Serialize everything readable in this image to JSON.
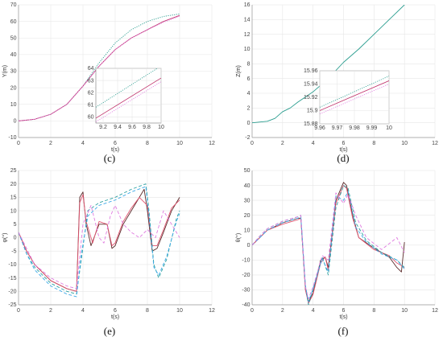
{
  "chart_data": [
    {
      "id": "c",
      "panel_label": "(c)",
      "type": "line",
      "xlabel": "t(s)",
      "ylabel": "Y(m)",
      "xlim": [
        0,
        12
      ],
      "ylim": [
        -10,
        70
      ],
      "xticks": [
        "0",
        "2",
        "4",
        "6",
        "8",
        "10",
        "12"
      ],
      "yticks": [
        "-10",
        "0",
        "10",
        "20",
        "30",
        "40",
        "50",
        "60",
        "70"
      ],
      "grid": true,
      "series": [
        {
          "color": "#2a9d8f",
          "style": "dotted",
          "x": [
            0,
            1,
            2,
            3,
            4,
            5,
            6,
            7,
            8,
            9,
            10
          ],
          "y": [
            0,
            1,
            4,
            10,
            21,
            35,
            47,
            55,
            60,
            63,
            64.5
          ]
        },
        {
          "color": "#c0306a",
          "style": "solid",
          "x": [
            0,
            1,
            2,
            3,
            4,
            5,
            6,
            7,
            8,
            9,
            10
          ],
          "y": [
            0,
            1,
            4,
            10,
            21,
            33,
            43,
            50,
            55,
            60,
            63.6
          ]
        },
        {
          "color": "#e07be0",
          "style": "dotted",
          "x": [
            0,
            1,
            2,
            3,
            4,
            5,
            6,
            7,
            8,
            9,
            10
          ],
          "y": [
            0,
            1,
            4,
            10,
            21,
            33,
            43,
            50,
            55,
            59.5,
            63.2
          ]
        }
      ],
      "inset": {
        "xlim": [
          9.1,
          10
        ],
        "ylim": [
          59.5,
          64
        ],
        "xticks": [
          "9.2",
          "9.4",
          "9.6",
          "9.8",
          "10"
        ],
        "yticks": [
          "60",
          "61",
          "62",
          "63",
          "64"
        ],
        "series": [
          {
            "color": "#2a9d8f",
            "style": "dotted",
            "x": [
              9.1,
              10
            ],
            "y": [
              60.8,
              64.2
            ]
          },
          {
            "color": "#c0306a",
            "style": "solid",
            "x": [
              9.1,
              10
            ],
            "y": [
              59.9,
              63.2
            ]
          },
          {
            "color": "#e07be0",
            "style": "dotted",
            "x": [
              9.1,
              10
            ],
            "y": [
              59.6,
              62.9
            ]
          }
        ]
      }
    },
    {
      "id": "d",
      "panel_label": "(d)",
      "type": "line",
      "xlabel": "t(s)",
      "ylabel": "Z(m)",
      "xlim": [
        0,
        12
      ],
      "ylim": [
        -2,
        16
      ],
      "xticks": [
        "0",
        "2",
        "4",
        "6",
        "8",
        "10",
        "12"
      ],
      "yticks": [
        "-2",
        "0",
        "2",
        "4",
        "6",
        "8",
        "10",
        "12",
        "14",
        "16"
      ],
      "grid": true,
      "series": [
        {
          "color": "#2a9d8f",
          "style": "solid",
          "x": [
            0,
            1,
            1.5,
            2,
            2.5,
            3,
            4,
            5,
            6,
            7,
            8,
            9,
            10
          ],
          "y": [
            0,
            0.2,
            0.6,
            1.5,
            2.0,
            2.8,
            4.2,
            6,
            8.2,
            10,
            12,
            14,
            16
          ]
        }
      ],
      "inset": {
        "xlim": [
          9.96,
          10
        ],
        "ylim": [
          15.88,
          15.96
        ],
        "xticks": [
          "9.96",
          "9.97",
          "9.98",
          "9.99",
          "10"
        ],
        "yticks": [
          "15.88",
          "15.9",
          "15.92",
          "15.94",
          "15.96"
        ],
        "series": [
          {
            "color": "#2a9d8f",
            "style": "dotted",
            "x": [
              9.96,
              10
            ],
            "y": [
              15.905,
              15.952
            ]
          },
          {
            "color": "#c0306a",
            "style": "solid",
            "x": [
              9.96,
              10
            ],
            "y": [
              15.9,
              15.945
            ]
          },
          {
            "color": "#e07be0",
            "style": "dotted",
            "x": [
              9.96,
              10
            ],
            "y": [
              15.895,
              15.94
            ]
          }
        ]
      }
    },
    {
      "id": "e",
      "panel_label": "(e)",
      "type": "line",
      "xlabel": "t(s)",
      "ylabel": "φ(°)",
      "xlim": [
        0,
        12
      ],
      "ylim": [
        -25,
        25
      ],
      "xticks": [
        "0",
        "2",
        "4",
        "6",
        "8",
        "10",
        "12"
      ],
      "yticks": [
        "-25",
        "-20",
        "-15",
        "-10",
        "-5",
        "0",
        "5",
        "10",
        "15",
        "20",
        "25"
      ],
      "grid": true,
      "series": [
        {
          "color": "#5a2a2a",
          "style": "solid",
          "x": [
            0,
            0.5,
            1,
            2,
            3,
            3.6,
            3.8,
            4,
            4.2,
            4.5,
            5,
            5.5,
            5.8,
            6,
            6.5,
            7,
            7.8,
            8,
            8.3,
            8.6,
            9,
            9.5,
            10
          ],
          "y": [
            2,
            -5,
            -10,
            -16,
            -19,
            -20,
            15,
            17,
            5,
            -3,
            5,
            5,
            -4,
            -3,
            5,
            10,
            18,
            10,
            -5,
            -4,
            2,
            10,
            15
          ]
        },
        {
          "color": "#e05570",
          "style": "solid",
          "x": [
            0,
            0.5,
            1,
            2,
            3,
            3.6,
            3.8,
            4,
            4.2,
            4.6,
            5,
            5.5,
            5.8,
            6,
            6.5,
            7,
            7.5,
            8,
            8.3,
            8.6,
            9,
            9.5,
            10
          ],
          "y": [
            2,
            -5,
            -10,
            -16,
            -19,
            -20,
            13,
            16,
            6,
            -2,
            6,
            5,
            -3,
            -2,
            6,
            11,
            15,
            12,
            -3,
            -3,
            3,
            11,
            14
          ]
        },
        {
          "color": "#2aa0a0",
          "style": "dashed",
          "x": [
            0,
            0.5,
            1,
            2,
            3,
            3.6,
            3.9,
            4.3,
            5,
            6,
            7,
            7.9,
            8.1,
            8.4,
            8.7,
            9.2,
            9.8,
            10
          ],
          "y": [
            2,
            -6,
            -11,
            -17,
            -20,
            -21,
            -8,
            10,
            13,
            15,
            18,
            20,
            10,
            -10,
            -15,
            -8,
            7,
            10
          ]
        },
        {
          "color": "#3aa8e8",
          "style": "dashed",
          "x": [
            0,
            0.5,
            1,
            2,
            3,
            3.6,
            3.9,
            4.3,
            5,
            6,
            7,
            7.9,
            8.1,
            8.4,
            8.7,
            9.2,
            9.8,
            10
          ],
          "y": [
            2,
            -6,
            -12,
            -18,
            -21,
            -22,
            -6,
            8,
            12,
            14,
            17,
            19,
            8,
            -11,
            -14,
            -7,
            6,
            9
          ]
        },
        {
          "color": "#e07be0",
          "style": "dashed",
          "x": [
            0,
            1,
            2,
            3,
            3.6,
            4,
            4.5,
            5,
            5.3,
            5.7,
            6,
            6.5,
            7,
            7.5,
            8,
            8.5,
            9,
            9.5,
            10
          ],
          "y": [
            2,
            -10,
            -15,
            -18,
            -19,
            5,
            12,
            0,
            -2,
            8,
            12,
            5,
            2,
            0,
            3,
            0,
            10,
            5,
            0
          ]
        }
      ]
    },
    {
      "id": "f",
      "panel_label": "(f)",
      "type": "line",
      "xlabel": "t(s)",
      "ylabel": "θ(°)",
      "xlim": [
        0,
        12
      ],
      "ylim": [
        -40,
        50
      ],
      "xticks": [
        "0",
        "2",
        "4",
        "6",
        "8",
        "10",
        "12"
      ],
      "yticks": [
        "-40",
        "-30",
        "-20",
        "-10",
        "0",
        "10",
        "20",
        "30",
        "40",
        "50"
      ],
      "grid": true,
      "series": [
        {
          "color": "#5a2a2a",
          "style": "solid",
          "x": [
            0,
            0.5,
            1,
            2,
            3,
            3.2,
            3.5,
            3.7,
            4,
            4.5,
            4.8,
            5,
            5.5,
            6,
            6.2,
            6.6,
            7,
            8,
            9,
            9.5,
            9.8,
            10
          ],
          "y": [
            0,
            5,
            10,
            15,
            18,
            18,
            -30,
            -38,
            -32,
            -10,
            -8,
            -15,
            30,
            42,
            40,
            20,
            5,
            -2,
            -8,
            -15,
            -18,
            2
          ]
        },
        {
          "color": "#e05570",
          "style": "solid",
          "x": [
            0,
            0.5,
            1,
            2,
            3,
            3.2,
            3.5,
            3.7,
            4,
            4.5,
            4.8,
            5,
            5.5,
            6,
            6.2,
            6.6,
            7,
            8,
            9,
            9.5,
            10
          ],
          "y": [
            0,
            5,
            10,
            14,
            17,
            18,
            -30,
            -39,
            -33,
            -12,
            -8,
            -17,
            28,
            40,
            38,
            18,
            5,
            -3,
            -7,
            -12,
            -15
          ]
        },
        {
          "color": "#2aa0a0",
          "style": "dashed",
          "x": [
            0,
            0.5,
            1,
            2,
            3,
            3.2,
            3.5,
            3.7,
            4,
            4.6,
            5,
            5.5,
            6,
            6.3,
            6.8,
            7.5,
            8.5,
            9.5,
            10
          ],
          "y": [
            0,
            6,
            11,
            16,
            19,
            20,
            -28,
            -40,
            -30,
            -8,
            -20,
            25,
            40,
            38,
            15,
            3,
            -5,
            -10,
            -15
          ]
        },
        {
          "color": "#3aa8e8",
          "style": "dashed",
          "x": [
            0,
            0.5,
            1,
            2,
            3,
            3.2,
            3.5,
            3.7,
            4,
            4.6,
            5,
            5.5,
            6,
            6.3,
            6.8,
            7.5,
            8.5,
            9.5,
            10
          ],
          "y": [
            0,
            5,
            10,
            15,
            18,
            19,
            -27,
            -38,
            -29,
            -9,
            -18,
            33,
            30,
            36,
            12,
            2,
            -6,
            -10,
            -16
          ]
        },
        {
          "color": "#e07be0",
          "style": "dashed",
          "x": [
            0,
            0.5,
            1,
            2,
            3,
            3.2,
            3.5,
            3.7,
            4,
            4.6,
            5,
            5.5,
            6,
            6.3,
            6.8,
            7.5,
            8.5,
            9.5,
            10
          ],
          "y": [
            0,
            6,
            11,
            16,
            19,
            20,
            -28,
            -36,
            -28,
            -7,
            -10,
            35,
            28,
            34,
            20,
            5,
            -3,
            5,
            -5
          ]
        }
      ]
    }
  ]
}
